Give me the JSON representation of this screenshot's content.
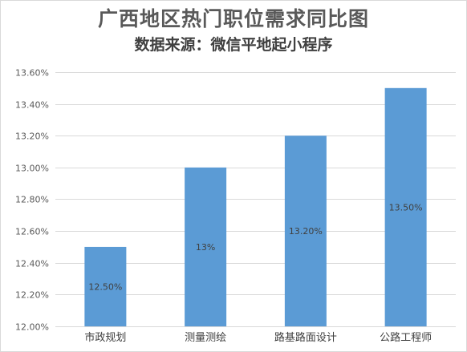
{
  "chart_data": {
    "type": "bar",
    "title": "广西地区热门职位需求同比图",
    "subtitle": "数据来源：微信平地起小程序",
    "categories": [
      "市政规划",
      "测量测绘",
      "路基路面设计",
      "公路工程师"
    ],
    "values": [
      12.5,
      13.0,
      13.2,
      13.5
    ],
    "data_labels": [
      "12.50%",
      "13%",
      "13.20%",
      "13.50%"
    ],
    "ylim": [
      12.0,
      13.6
    ],
    "yticks": [
      12.0,
      12.2,
      12.4,
      12.6,
      12.8,
      13.0,
      13.2,
      13.4,
      13.6
    ],
    "ytick_labels": [
      "12.00%",
      "12.20%",
      "12.40%",
      "12.60%",
      "12.80%",
      "13.00%",
      "13.20%",
      "13.40%",
      "13.60%"
    ],
    "xlabel": "",
    "ylabel": "",
    "grid": true,
    "legend": "none",
    "colors": {
      "bar": "#5b9bd5",
      "gridline": "#d9d9d9",
      "axis_text": "#595959",
      "data_label": "#404040"
    }
  }
}
